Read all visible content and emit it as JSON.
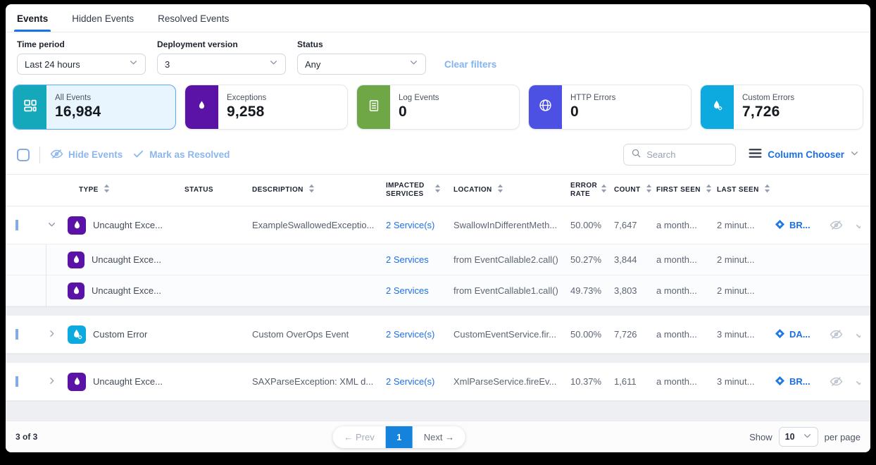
{
  "tabs": {
    "items": [
      {
        "label": "Events",
        "active": true
      },
      {
        "label": "Hidden Events",
        "active": false
      },
      {
        "label": "Resolved Events",
        "active": false
      }
    ]
  },
  "filters": {
    "time_period": {
      "label": "Time period",
      "value": "Last 24 hours"
    },
    "deployment_version": {
      "label": "Deployment version",
      "value": "3"
    },
    "status": {
      "label": "Status",
      "value": "Any"
    },
    "clear_label": "Clear filters"
  },
  "cards": [
    {
      "label": "All Events",
      "value": "16,984",
      "color": "#15a8bb",
      "icon": "grid-icon",
      "selected": true
    },
    {
      "label": "Exceptions",
      "value": "9,258",
      "color": "#5a13a6",
      "icon": "flame-icon",
      "selected": false
    },
    {
      "label": "Log Events",
      "value": "0",
      "color": "#6fa746",
      "icon": "document-icon",
      "selected": false
    },
    {
      "label": "HTTP Errors",
      "value": "0",
      "color": "#4c50e3",
      "icon": "globe-icon",
      "selected": false
    },
    {
      "label": "Custom Errors",
      "value": "7,726",
      "color": "#0caade",
      "icon": "flame-gear-icon",
      "selected": false
    }
  ],
  "toolbar": {
    "hide_events_label": "Hide Events",
    "mark_resolved_label": "Mark as Resolved",
    "search_placeholder": "Search",
    "column_chooser_label": "Column Chooser"
  },
  "table": {
    "headers": {
      "type": "TYPE",
      "status": "STATUS",
      "description": "DESCRIPTION",
      "impacted_services": "IMPACTED SERVICES",
      "location": "LOCATION",
      "error_rate": "ERROR RATE",
      "count": "COUNT",
      "first_seen": "FIRST SEEN",
      "last_seen": "LAST SEEN"
    },
    "rows": [
      {
        "type": "Uncaught Exce...",
        "type_color": "#5a13a6",
        "type_icon": "flame-icon",
        "description": "ExampleSwallowedExceptio...",
        "services": "2 Service(s)",
        "location": "SwallowInDifferentMeth...",
        "error_rate": "50.00%",
        "count": "7,647",
        "first_seen": "a month...",
        "last_seen": "2 minut...",
        "ticket": "BR...",
        "children": [
          {
            "type": "Uncaught Exce...",
            "type_color": "#5a13a6",
            "type_icon": "flame-icon",
            "services": "2 Services",
            "location": "from EventCallable2.call()",
            "error_rate": "50.27%",
            "count": "3,844",
            "first_seen": "a month...",
            "last_seen": "2 minut..."
          },
          {
            "type": "Uncaught Exce...",
            "type_color": "#5a13a6",
            "type_icon": "flame-icon",
            "services": "2 Services",
            "location": "from EventCallable1.call()",
            "error_rate": "49.73%",
            "count": "3,803",
            "first_seen": "a month...",
            "last_seen": "2 minut..."
          }
        ]
      },
      {
        "type": "Custom Error",
        "type_color": "#0caade",
        "type_icon": "flame-gear-icon",
        "description": "Custom OverOps Event",
        "services": "2 Service(s)",
        "location": "CustomEventService.fir...",
        "error_rate": "50.00%",
        "count": "7,726",
        "first_seen": "a month...",
        "last_seen": "3 minut...",
        "ticket": "DA..."
      },
      {
        "type": "Uncaught Exce...",
        "type_color": "#5a13a6",
        "type_icon": "flame-icon",
        "description": "SAXParseException: XML d...",
        "services": "2 Service(s)",
        "location": "XmlParseService.fireEv...",
        "error_rate": "10.37%",
        "count": "1,611",
        "first_seen": "a month...",
        "last_seen": "3 minut...",
        "ticket": "BR..."
      }
    ]
  },
  "footer": {
    "range": "3 of 3",
    "prev_label": "← Prev",
    "page": "1",
    "next_label": "Next →",
    "show_label": "Show",
    "page_size": "10",
    "per_page_label": "per page"
  }
}
